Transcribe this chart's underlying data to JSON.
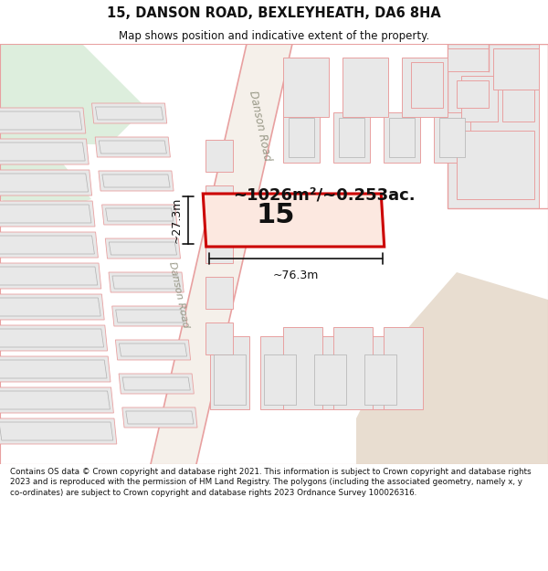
{
  "title": "15, DANSON ROAD, BEXLEYHEATH, DA6 8HA",
  "subtitle": "Map shows position and indicative extent of the property.",
  "footer": "Contains OS data © Crown copyright and database right 2021. This information is subject to Crown copyright and database rights 2023 and is reproduced with the permission of HM Land Registry. The polygons (including the associated geometry, namely x, y co-ordinates) are subject to Crown copyright and database rights 2023 Ordnance Survey 100026316.",
  "area_label": "~1026m²/~0.253ac.",
  "property_number": "15",
  "dim_width": "~76.3m",
  "dim_height": "~27.3m",
  "bg_color": "#ffffff",
  "road_outline_color": "#e8a0a0",
  "road_fill_color": "#f5f0ea",
  "property_fill": "#fce8e0",
  "property_edge": "#cc0000",
  "building_fill": "#e8e8e8",
  "building_edge": "#b0b0b0",
  "building_outline_pink": "#e8a0a0",
  "green_area": "#ddeedd",
  "tan_area": "#e8ddd0",
  "road_label_color": "#999988",
  "text_color": "#111111",
  "dim_color": "#111111",
  "figsize": [
    6.0,
    6.25
  ],
  "dpi": 100
}
